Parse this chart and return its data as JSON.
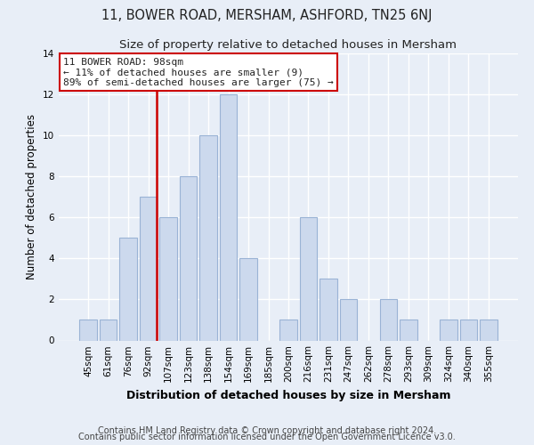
{
  "title": "11, BOWER ROAD, MERSHAM, ASHFORD, TN25 6NJ",
  "subtitle": "Size of property relative to detached houses in Mersham",
  "xlabel": "Distribution of detached houses by size in Mersham",
  "ylabel": "Number of detached properties",
  "categories": [
    "45sqm",
    "61sqm",
    "76sqm",
    "92sqm",
    "107sqm",
    "123sqm",
    "138sqm",
    "154sqm",
    "169sqm",
    "185sqm",
    "200sqm",
    "216sqm",
    "231sqm",
    "247sqm",
    "262sqm",
    "278sqm",
    "293sqm",
    "309sqm",
    "324sqm",
    "340sqm",
    "355sqm"
  ],
  "values": [
    1,
    1,
    5,
    7,
    6,
    8,
    10,
    12,
    4,
    0,
    1,
    6,
    3,
    2,
    0,
    2,
    1,
    0,
    1,
    1,
    1
  ],
  "bar_color": "#ccd9ed",
  "bar_edge_color": "#9ab3d5",
  "reference_line_color": "#cc0000",
  "annotation_text": "11 BOWER ROAD: 98sqm\n← 11% of detached houses are smaller (9)\n89% of semi-detached houses are larger (75) →",
  "annotation_box_color": "#ffffff",
  "annotation_box_edge": "#cc0000",
  "ylim": [
    0,
    14
  ],
  "yticks": [
    0,
    2,
    4,
    6,
    8,
    10,
    12,
    14
  ],
  "footer_line1": "Contains HM Land Registry data © Crown copyright and database right 2024.",
  "footer_line2": "Contains public sector information licensed under the Open Government Licence v3.0.",
  "title_fontsize": 10.5,
  "subtitle_fontsize": 9.5,
  "xlabel_fontsize": 9,
  "ylabel_fontsize": 8.5,
  "tick_fontsize": 7.5,
  "footer_fontsize": 7,
  "annotation_fontsize": 8,
  "background_color": "#e8eef7",
  "axes_bg_color": "#e8eef7",
  "grid_color": "#ffffff",
  "text_color": "#222222"
}
